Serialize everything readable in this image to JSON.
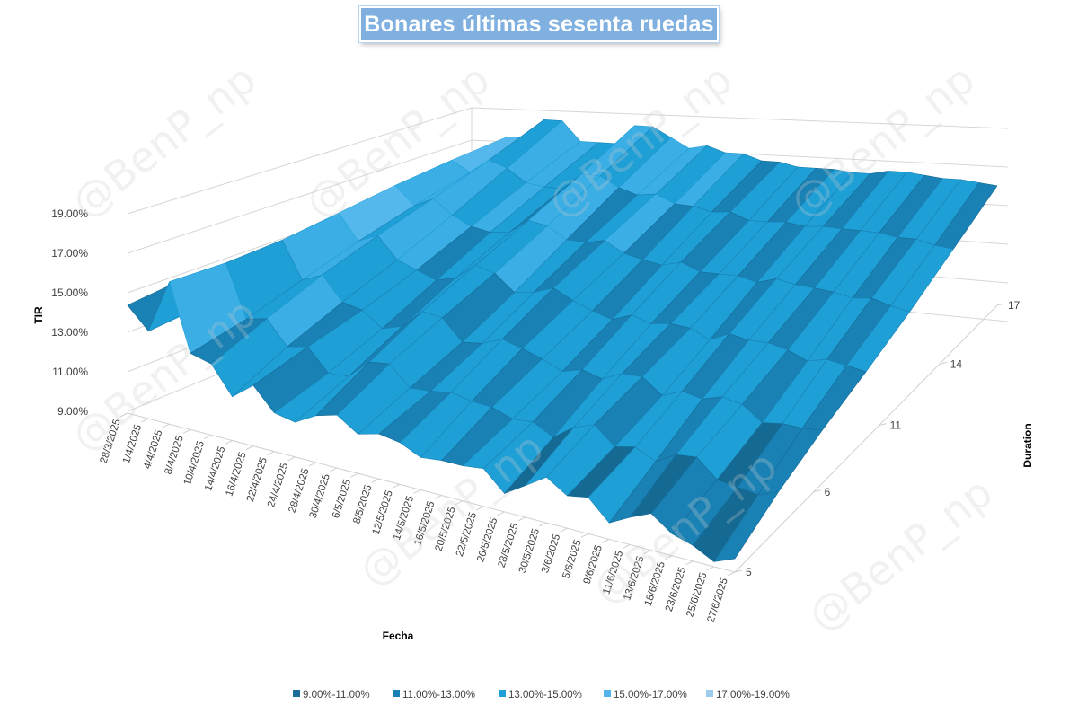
{
  "chart_data": {
    "type": "surface",
    "title": "Bonares últimas sesenta ruedas",
    "xlabel": "Fecha",
    "ylabel": "TIR",
    "zlabel": "Duration",
    "ytick_labels": [
      "9.00%",
      "11.00%",
      "13.00%",
      "15.00%",
      "17.00%",
      "19.00%"
    ],
    "ylim": [
      9,
      19
    ],
    "date_labels": [
      "28/3/2025",
      "1/4/2025",
      "4/4/2025",
      "8/4/2025",
      "10/4/2025",
      "14/4/2025",
      "16/4/2025",
      "22/4/2025",
      "24/4/2025",
      "28/4/2025",
      "30/4/2025",
      "6/5/2025",
      "8/5/2025",
      "12/5/2025",
      "14/5/2025",
      "16/5/2025",
      "20/5/2025",
      "22/5/2025",
      "26/5/2025",
      "28/5/2025",
      "30/5/2025",
      "3/6/2025",
      "5/6/2025",
      "9/6/2025",
      "11/6/2025",
      "13/6/2025",
      "18/6/2025",
      "23/6/2025",
      "25/6/2025",
      "27/6/2025"
    ],
    "duration_labels": [
      "5",
      "6",
      "11",
      "14",
      "17"
    ],
    "legend": [
      {
        "label": "9.00%-11.00%",
        "color": "#1a6e98"
      },
      {
        "label": "11.00%-13.00%",
        "color": "#1a81b5"
      },
      {
        "label": "13.00%-15.00%",
        "color": "#1e9fd6"
      },
      {
        "label": "15.00%-17.00%",
        "color": "#52b4ea"
      },
      {
        "label": "17.00%-19.00%",
        "color": "#9ccdee"
      }
    ],
    "legend_position": "bottom",
    "tir_near_edge": [
      14.5,
      13.1,
      16.1,
      13.1,
      12.9,
      11.1,
      11.7,
      10.8,
      11.0,
      11.6,
      11.5,
      10.6,
      11.2,
      11.4,
      10.8,
      10.5,
      10.4,
      10.9,
      10.2,
      10.7,
      11.0,
      10.3,
      10.9,
      10.1,
      10.4,
      10.5,
      9.8,
      9.9,
      9.5,
      9.6
    ],
    "tir_far_edge": [
      14.0,
      14.5,
      16.0,
      16.0,
      17.0,
      17.0,
      16.0,
      16.0,
      16.0,
      17.0,
      17.0,
      16.5,
      16.0,
      16.2,
      15.9,
      15.9,
      15.6,
      15.6,
      15.4,
      15.4,
      15.4,
      15.3,
      15.3,
      15.5,
      15.5,
      15.4,
      15.3,
      15.3,
      15.2,
      15.1
    ]
  }
}
